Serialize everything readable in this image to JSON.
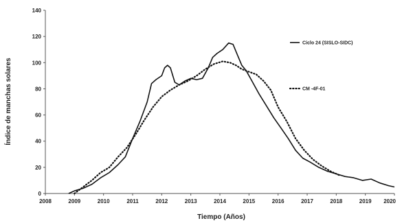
{
  "chart_data": {
    "type": "line",
    "title": "",
    "xlabel": "Tiempo (Años)",
    "ylabel": "Índice de manchas solares",
    "xlim": [
      2008,
      2020
    ],
    "ylim": [
      0,
      140
    ],
    "x_ticks": [
      "2008",
      "2009",
      "2010",
      "2011",
      "2012",
      "2013",
      "2014",
      "2015",
      "2016",
      "2017",
      "2018",
      "2019",
      "2020"
    ],
    "y_ticks": [
      "0",
      "20",
      "40",
      "60",
      "80",
      "100",
      "120",
      "140"
    ],
    "grid": false,
    "legend_position": "right",
    "colors": {
      "line": "#111111",
      "axis": "#555555",
      "text": "#222222"
    },
    "series": [
      {
        "name": "Ciclo 24 (SISLO-SIDC)",
        "style": "solid",
        "points": [
          [
            2008.8,
            0
          ],
          [
            2009.0,
            2
          ],
          [
            2009.3,
            4
          ],
          [
            2009.6,
            7
          ],
          [
            2009.9,
            12
          ],
          [
            2010.2,
            16
          ],
          [
            2010.5,
            22
          ],
          [
            2010.75,
            28
          ],
          [
            2011.0,
            42
          ],
          [
            2011.25,
            55
          ],
          [
            2011.5,
            70
          ],
          [
            2011.65,
            84
          ],
          [
            2011.8,
            87
          ],
          [
            2012.0,
            90
          ],
          [
            2012.1,
            96
          ],
          [
            2012.2,
            98
          ],
          [
            2012.3,
            96
          ],
          [
            2012.45,
            85
          ],
          [
            2012.6,
            83
          ],
          [
            2012.8,
            86
          ],
          [
            2013.0,
            88
          ],
          [
            2013.2,
            87
          ],
          [
            2013.4,
            88
          ],
          [
            2013.6,
            96
          ],
          [
            2013.75,
            104
          ],
          [
            2013.9,
            107
          ],
          [
            2014.1,
            110
          ],
          [
            2014.3,
            115
          ],
          [
            2014.45,
            114
          ],
          [
            2014.6,
            106
          ],
          [
            2014.75,
            98
          ],
          [
            2014.9,
            94
          ],
          [
            2015.1,
            86
          ],
          [
            2015.35,
            76
          ],
          [
            2015.6,
            67
          ],
          [
            2015.85,
            58
          ],
          [
            2016.1,
            50
          ],
          [
            2016.35,
            42
          ],
          [
            2016.6,
            33
          ],
          [
            2016.85,
            27
          ],
          [
            2017.1,
            24
          ],
          [
            2017.4,
            20
          ],
          [
            2017.7,
            17
          ],
          [
            2018.0,
            15
          ],
          [
            2018.3,
            13
          ],
          [
            2018.6,
            12
          ],
          [
            2018.9,
            10
          ],
          [
            2019.2,
            11
          ],
          [
            2019.5,
            8
          ],
          [
            2019.8,
            6
          ],
          [
            2020.0,
            5
          ]
        ]
      },
      {
        "name": "CM -4F-01",
        "style": "dotted",
        "points": [
          [
            2009.0,
            0
          ],
          [
            2009.3,
            5
          ],
          [
            2009.6,
            10
          ],
          [
            2009.9,
            16
          ],
          [
            2010.2,
            20
          ],
          [
            2010.5,
            28
          ],
          [
            2010.8,
            35
          ],
          [
            2011.1,
            45
          ],
          [
            2011.4,
            56
          ],
          [
            2011.7,
            66
          ],
          [
            2012.0,
            74
          ],
          [
            2012.3,
            79
          ],
          [
            2012.6,
            83
          ],
          [
            2012.9,
            86
          ],
          [
            2013.2,
            90
          ],
          [
            2013.5,
            95
          ],
          [
            2013.8,
            99
          ],
          [
            2014.1,
            101
          ],
          [
            2014.35,
            100
          ],
          [
            2014.55,
            98
          ],
          [
            2014.75,
            95
          ],
          [
            2015.0,
            93
          ],
          [
            2015.25,
            91
          ],
          [
            2015.5,
            86
          ],
          [
            2015.75,
            79
          ],
          [
            2016.0,
            66
          ],
          [
            2016.3,
            55
          ],
          [
            2016.6,
            42
          ],
          [
            2016.9,
            33
          ],
          [
            2017.2,
            26
          ],
          [
            2017.5,
            21
          ],
          [
            2017.8,
            17
          ],
          [
            2018.1,
            14
          ]
        ]
      }
    ]
  }
}
